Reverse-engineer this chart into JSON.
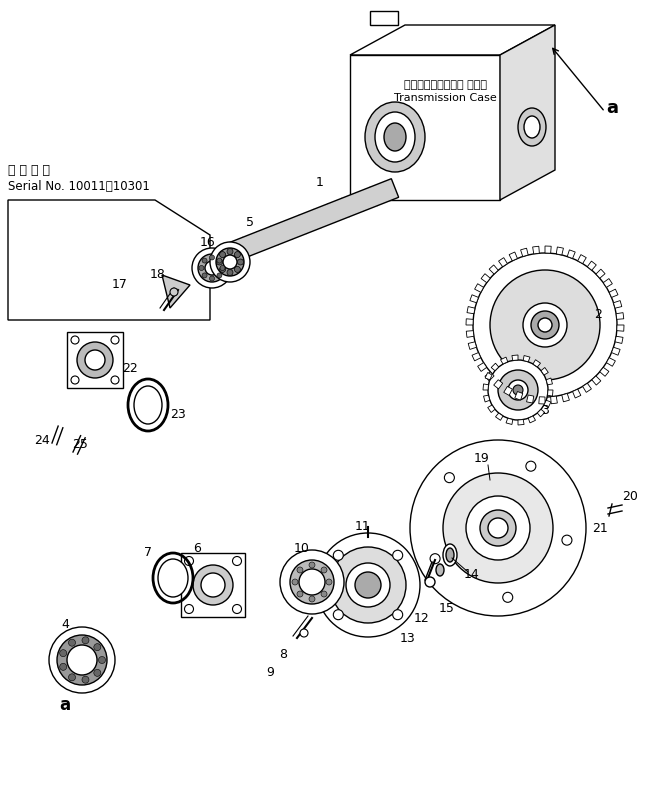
{
  "background_color": "#ffffff",
  "line_color": "#000000",
  "text_color": "#000000",
  "serial_text_line1": "適 用 号 機",
  "serial_text_line2": "Serial No. 10011～10301",
  "transmission_case_jp": "トランスミッション ケース",
  "transmission_case_en": "Transmission Case"
}
